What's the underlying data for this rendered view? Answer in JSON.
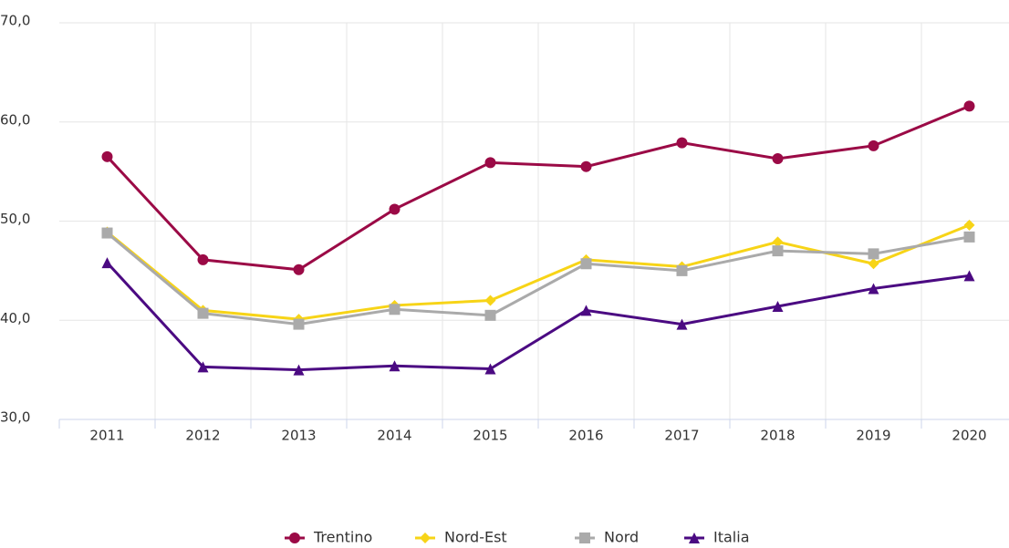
{
  "chart_data": {
    "type": "line",
    "categories": [
      "2011",
      "2012",
      "2013",
      "2014",
      "2015",
      "2016",
      "2017",
      "2018",
      "2019",
      "2020"
    ],
    "series": [
      {
        "name": "Trentino",
        "color": "#9b0a46",
        "marker": "circle",
        "values": [
          56.5,
          46.1,
          45.1,
          51.2,
          55.9,
          55.5,
          57.9,
          56.3,
          57.6,
          61.6
        ]
      },
      {
        "name": "Nord-Est",
        "color": "#f7d417",
        "marker": "diamond",
        "values": [
          48.9,
          41.0,
          40.1,
          41.5,
          42.0,
          46.1,
          45.4,
          47.9,
          45.7,
          49.6
        ]
      },
      {
        "name": "Nord",
        "color": "#aaaaaa",
        "marker": "square",
        "values": [
          48.8,
          40.7,
          39.6,
          41.1,
          40.5,
          45.7,
          45.0,
          47.0,
          46.7,
          48.4
        ]
      },
      {
        "name": "Italia",
        "color": "#4b0a82",
        "marker": "triangle",
        "values": [
          45.8,
          35.3,
          35.0,
          35.4,
          35.1,
          41.0,
          39.6,
          41.4,
          43.2,
          44.5
        ]
      }
    ],
    "ylim": [
      30,
      70
    ],
    "yticks": [
      {
        "value": 30,
        "label": "30,0"
      },
      {
        "value": 40,
        "label": "40,0"
      },
      {
        "value": 50,
        "label": "50,0"
      },
      {
        "value": 60,
        "label": "60,0"
      },
      {
        "value": 70,
        "label": "70,0"
      }
    ],
    "grid": true,
    "legend": "bottom"
  }
}
